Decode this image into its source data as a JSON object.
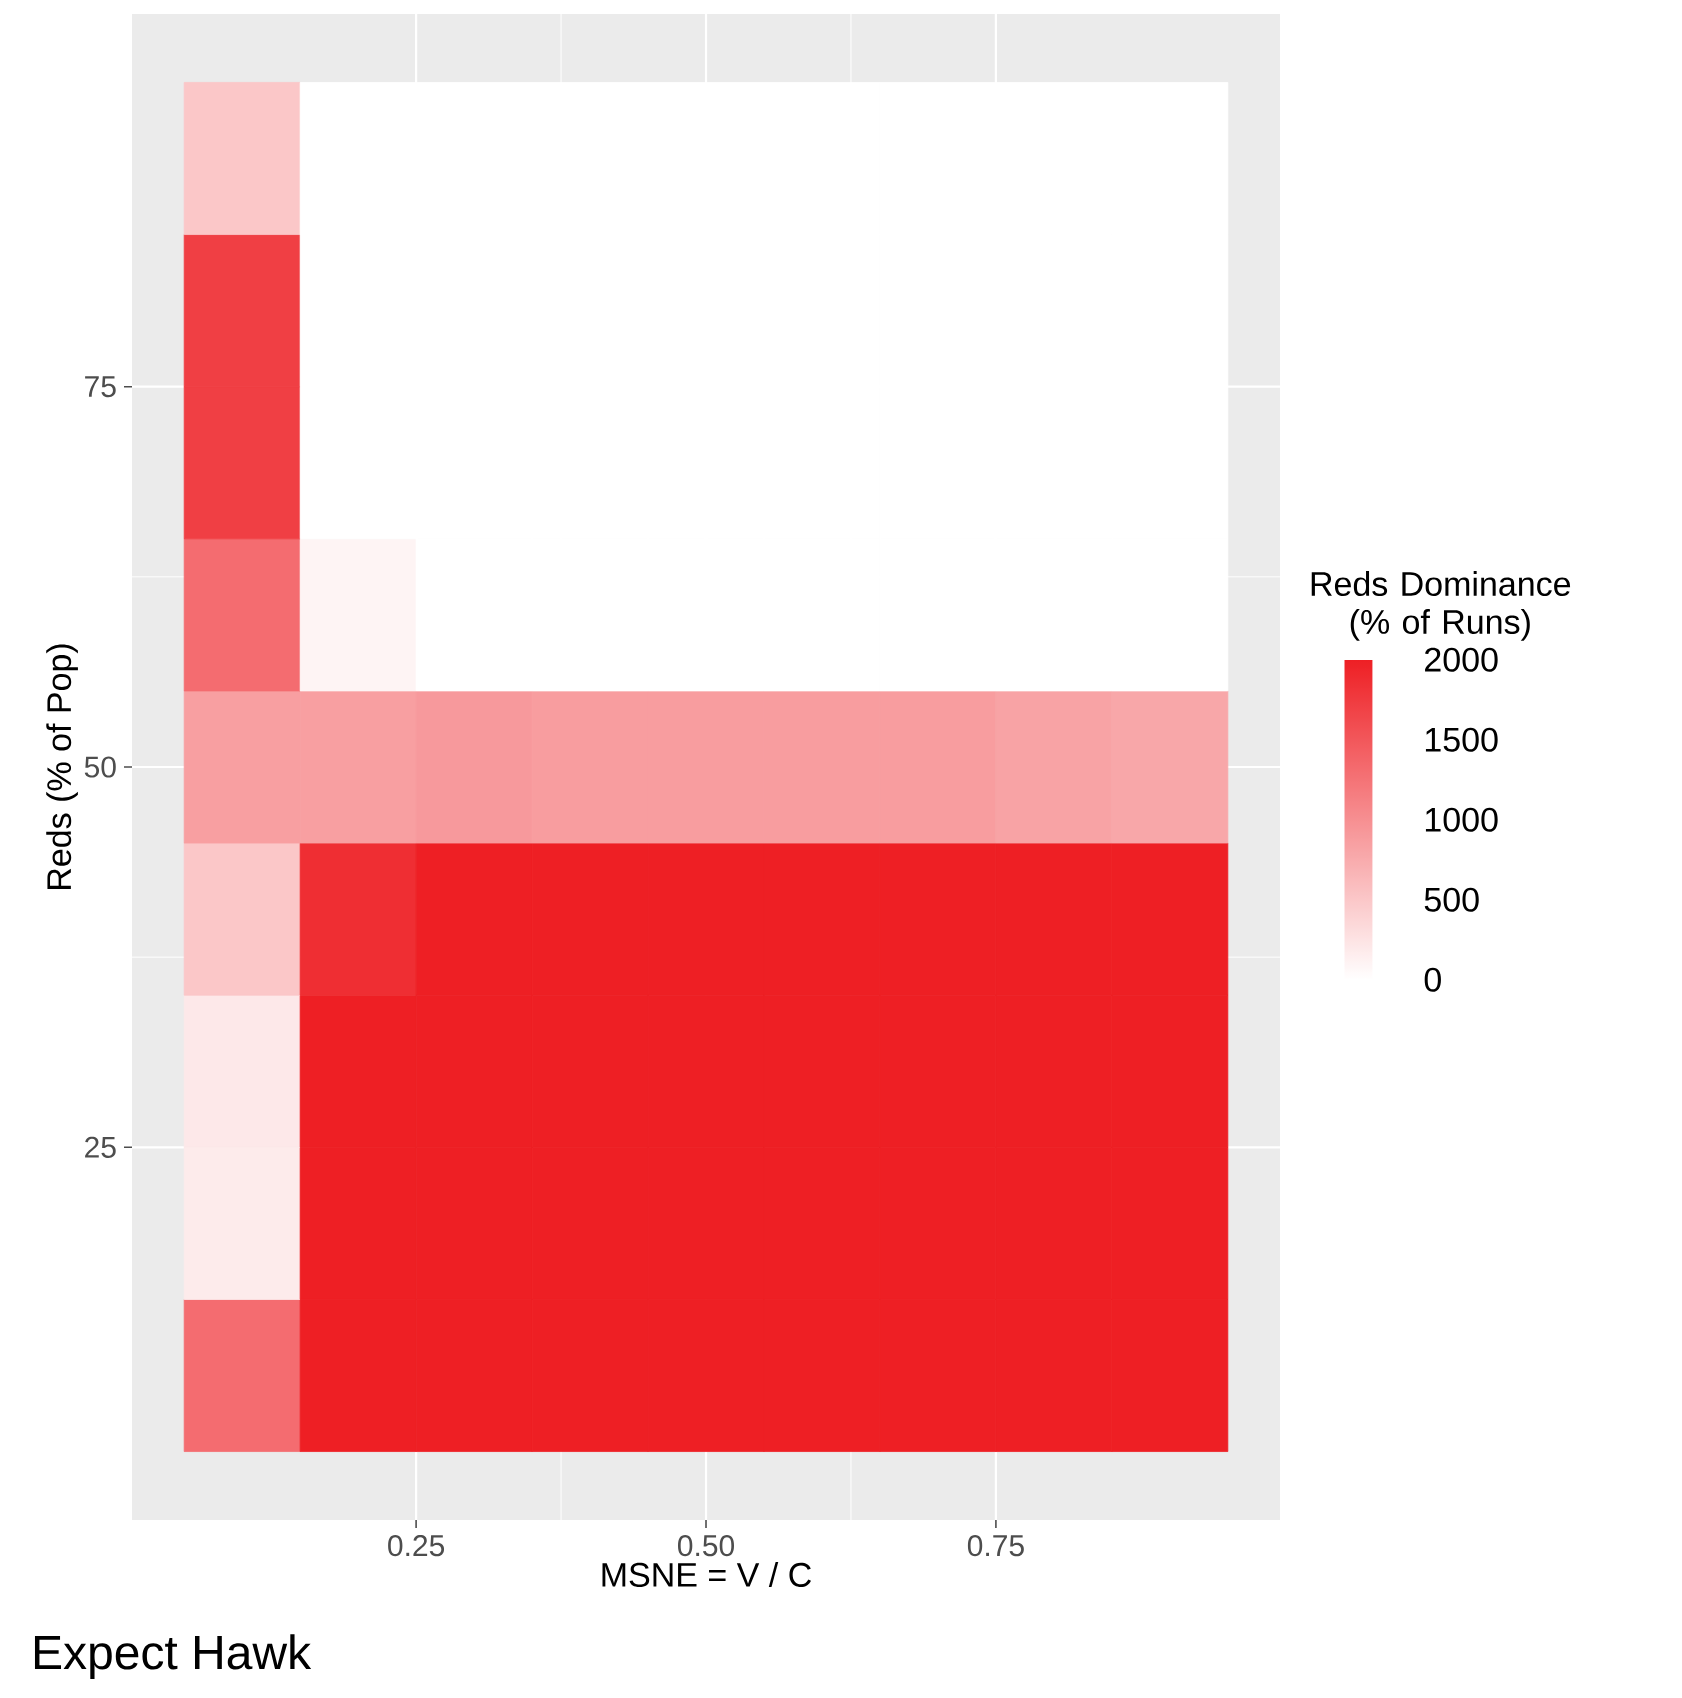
{
  "chart_data": {
    "type": "heatmap",
    "xlabel": "MSNE = V / C",
    "ylabel": "Reds (% of Pop)",
    "clabel": "Reds Dominance (% of Runs)",
    "annotations": [
      "Expect Hawk"
    ],
    "x": [
      0.1,
      0.2,
      0.3,
      0.4,
      0.5,
      0.6,
      0.7,
      0.8,
      0.9
    ],
    "y": [
      90,
      80,
      70,
      60,
      50,
      40,
      30,
      20,
      10
    ],
    "cells": [
      [
        500,
        0,
        0,
        0,
        0,
        0,
        0,
        0,
        0
      ],
      [
        1700,
        0,
        0,
        0,
        0,
        0,
        0,
        0,
        0
      ],
      [
        1700,
        0,
        0,
        0,
        0,
        0,
        0,
        0,
        0
      ],
      [
        1300,
        100,
        0,
        0,
        0,
        0,
        0,
        0,
        0
      ],
      [
        850,
        850,
        900,
        870,
        870,
        870,
        870,
        820,
        780
      ],
      [
        500,
        1850,
        2000,
        2000,
        2000,
        2000,
        2000,
        2000,
        2000
      ],
      [
        200,
        2000,
        2000,
        2000,
        2000,
        2000,
        2000,
        2000,
        2000
      ],
      [
        180,
        2000,
        2000,
        2000,
        2000,
        2000,
        2000,
        2000,
        2000
      ],
      [
        1300,
        2000,
        2000,
        2000,
        2000,
        2000,
        2000,
        2000,
        2000
      ]
    ],
    "clim": [
      0,
      2000
    ],
    "cticks": [
      0,
      500,
      1000,
      1500,
      2000
    ],
    "xlim": [
      0.005,
      0.995
    ],
    "xticks": [
      0.25,
      {
        "value": 0.5,
        "label": "0.50"
      },
      0.75
    ],
    "ylim": [
      0.5,
      99.5
    ],
    "yticks": [
      25,
      50,
      75
    ],
    "grid": true
  }
}
